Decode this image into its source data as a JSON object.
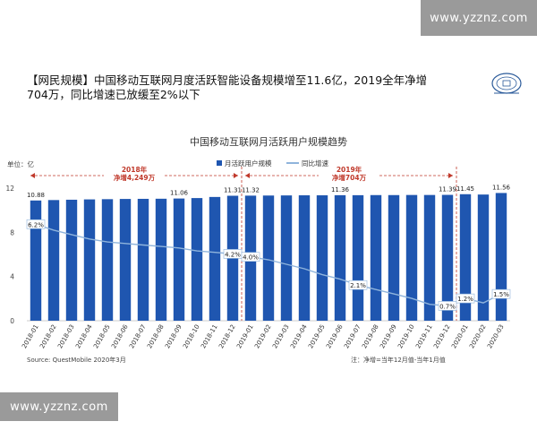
{
  "watermark_top": "www.yzznz.com",
  "watermark_bottom": "www.yzznz.com",
  "headline": "【网民规模】中国移动互联网月度活跃智能设备规模增至11.6亿，2019全年净增704万，同比增速已放缓至2%以下",
  "logo_text": "北京大学",
  "chart_data": {
    "type": "bar+line",
    "title": "中国移动互联网月活跃用户规模趋势",
    "unit_label": "单位：亿",
    "categories": [
      "2018-01",
      "2018-02",
      "2018-03",
      "2018-04",
      "2018-05",
      "2018-06",
      "2018-07",
      "2018-08",
      "2018-09",
      "2018-10",
      "2018-11",
      "2018-12",
      "2019-01",
      "2019-02",
      "2019-03",
      "2019-04",
      "2019-05",
      "2019-06",
      "2019-07",
      "2019-08",
      "2019-09",
      "2019-10",
      "2019-11",
      "2019-12",
      "2020-01",
      "2020-02",
      "2020-03"
    ],
    "series": [
      {
        "name": "月活跃用户规模",
        "type": "bar",
        "color": "#1f56b0",
        "values": [
          10.88,
          10.92,
          10.95,
          10.98,
          11.0,
          11.02,
          11.03,
          11.04,
          11.06,
          11.1,
          11.2,
          11.31,
          11.32,
          11.33,
          11.34,
          11.35,
          11.35,
          11.36,
          11.36,
          11.37,
          11.37,
          11.38,
          11.38,
          11.39,
          11.45,
          11.42,
          11.56
        ]
      },
      {
        "name": "同比增速",
        "type": "line",
        "color": "#8fb4dc",
        "axis": "right",
        "values": [
          6.2,
          5.8,
          5.5,
          5.2,
          5.0,
          4.9,
          4.8,
          4.7,
          4.6,
          4.4,
          4.3,
          4.2,
          4.0,
          3.8,
          3.5,
          3.2,
          2.8,
          2.5,
          2.1,
          1.8,
          1.5,
          1.2,
          0.8,
          0.7,
          1.2,
          0.9,
          1.5
        ]
      }
    ],
    "y_ticks": [
      "0",
      "4",
      "8",
      "12"
    ],
    "ylim": [
      0,
      12
    ],
    "value_labels": [
      {
        "index": 0,
        "text": "10.88"
      },
      {
        "index": 8,
        "text": "11.06"
      },
      {
        "index": 11,
        "text": "11.31"
      },
      {
        "index": 12,
        "text": "11.32"
      },
      {
        "index": 17,
        "text": "11.36"
      },
      {
        "index": 23,
        "text": "11.39"
      },
      {
        "index": 24,
        "text": "11.45"
      },
      {
        "index": 26,
        "text": "11.56"
      }
    ],
    "pct_labels": [
      {
        "index": 0,
        "text": "6.2%"
      },
      {
        "index": 11,
        "text": "4.2%"
      },
      {
        "index": 12,
        "text": "4.0%"
      },
      {
        "index": 18,
        "text": "2.1%"
      },
      {
        "index": 23,
        "text": "0.7%"
      },
      {
        "index": 24,
        "text": "1.2%"
      },
      {
        "index": 26,
        "text": "1.5%"
      }
    ],
    "annotations": [
      {
        "text_lines": [
          "2018年",
          "净增4,249万"
        ],
        "from": 0,
        "to": 11
      },
      {
        "text_lines": [
          "2019年",
          "净增704万"
        ],
        "from": 12,
        "to": 23
      }
    ],
    "source": "Source:   QuestMobile 2020年3月",
    "note": "注：净增=当年12月值-当年1月值"
  }
}
